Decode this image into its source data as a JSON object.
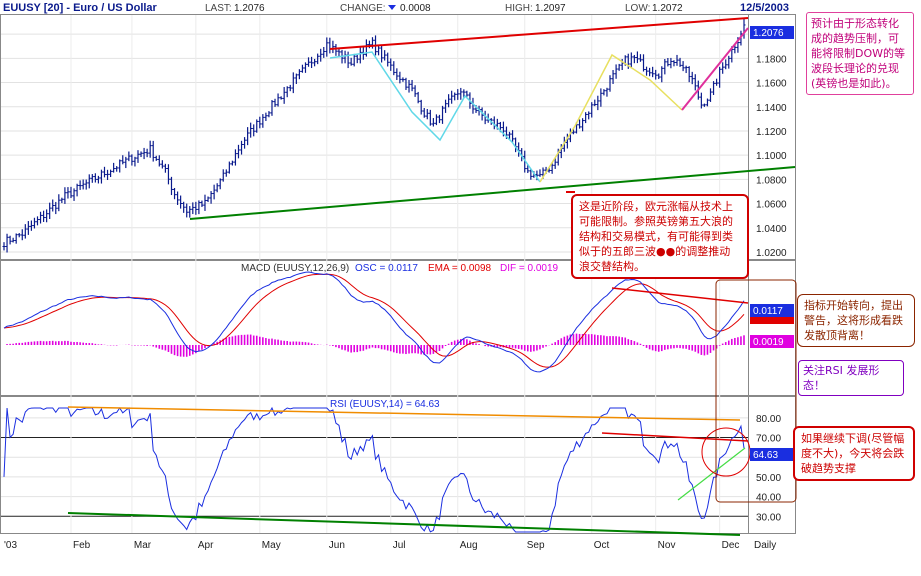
{
  "header": {
    "symbol": "EUUSY [20] - Euro / US Dollar",
    "last_label": "LAST:",
    "last": "1.2076",
    "change_label": "CHANGE:",
    "change": "0.0008",
    "high_label": "HIGH:",
    "high": "1.2097",
    "low_label": "LOW:",
    "low": "1.2072",
    "date": "12/5/2003"
  },
  "colors": {
    "price": "#0a1a8c",
    "macd_line": "#1a2ee0",
    "signal_line": "#e00000",
    "histogram": "#e000e0",
    "rsi_line": "#1a2ee0",
    "trend_red": "#e00000",
    "trend_green": "#008000",
    "trend_orange": "#f08c00",
    "wave_cyan": "#60d8e8",
    "wave_yellow": "#e8e060",
    "wave_magenta": "#e0309c",
    "bg": "#ffffff"
  },
  "chart_data": [
    {
      "type": "ohlc",
      "panel": "price",
      "ylim": [
        1.015,
        1.215
      ],
      "y_ticks": [
        "1.2000",
        "1.1800",
        "1.1600",
        "1.1400",
        "1.1200",
        "1.1000",
        "1.0800",
        "1.0600",
        "1.0400",
        "1.0200"
      ],
      "y_tick_values": [
        1.2,
        1.18,
        1.16,
        1.14,
        1.12,
        1.1,
        1.08,
        1.06,
        1.04,
        1.02
      ],
      "last_label": "1.2076",
      "x_months": [
        "'03",
        "Feb",
        "Mar",
        "Apr",
        "May",
        "Jun",
        "Jul",
        "Aug",
        "Sep",
        "Oct",
        "Nov",
        "Dec",
        "Daily"
      ],
      "x_month_index": [
        0,
        22,
        42,
        63,
        84,
        106,
        127,
        149,
        171,
        193,
        214,
        235,
        247
      ],
      "n_bars": 244,
      "anchors": [
        [
          0,
          1.028
        ],
        [
          6,
          1.035
        ],
        [
          12,
          1.048
        ],
        [
          20,
          1.066
        ],
        [
          28,
          1.078
        ],
        [
          35,
          1.088
        ],
        [
          42,
          1.098
        ],
        [
          48,
          1.105
        ],
        [
          53,
          1.086
        ],
        [
          56,
          1.068
        ],
        [
          60,
          1.054
        ],
        [
          66,
          1.06
        ],
        [
          72,
          1.082
        ],
        [
          78,
          1.11
        ],
        [
          86,
          1.135
        ],
        [
          94,
          1.158
        ],
        [
          100,
          1.175
        ],
        [
          106,
          1.192
        ],
        [
          111,
          1.182
        ],
        [
          114,
          1.176
        ],
        [
          117,
          1.185
        ],
        [
          121,
          1.192
        ],
        [
          128,
          1.17
        ],
        [
          134,
          1.154
        ],
        [
          138,
          1.135
        ],
        [
          141,
          1.125
        ],
        [
          145,
          1.14
        ],
        [
          150,
          1.154
        ],
        [
          154,
          1.14
        ],
        [
          158,
          1.13
        ],
        [
          164,
          1.122
        ],
        [
          168,
          1.106
        ],
        [
          172,
          1.086
        ],
        [
          176,
          1.082
        ],
        [
          180,
          1.092
        ],
        [
          184,
          1.11
        ],
        [
          190,
          1.13
        ],
        [
          196,
          1.15
        ],
        [
          200,
          1.165
        ],
        [
          204,
          1.178
        ],
        [
          207,
          1.18
        ],
        [
          211,
          1.172
        ],
        [
          215,
          1.168
        ],
        [
          219,
          1.18
        ],
        [
          222,
          1.176
        ],
        [
          226,
          1.162
        ],
        [
          229,
          1.142
        ],
        [
          232,
          1.15
        ],
        [
          235,
          1.168
        ],
        [
          238,
          1.182
        ],
        [
          241,
          1.196
        ],
        [
          243,
          1.2076
        ]
      ]
    },
    {
      "type": "line",
      "panel": "macd",
      "title": "MACD (EUUSY,12,26,9)",
      "osc_label": "OSC = 0.0117",
      "ema_label": "EMA = 0.0098",
      "dif_label": "DIF = 0.0019",
      "last_values": [
        "0.0117",
        "0.0098",
        "0.0019"
      ]
    },
    {
      "type": "line",
      "panel": "rsi",
      "title": "RSI (EUUSY,14) = 64.63",
      "ylim": [
        22,
        85
      ],
      "y_ticks": [
        "80.00",
        "70.00",
        "60.00",
        "50.00",
        "40.00",
        "30.00"
      ],
      "y_tick_values": [
        80,
        70,
        60,
        50,
        40,
        30
      ],
      "last_label": "64.63"
    }
  ],
  "notes": {
    "top_right": "预计由于形态转化成的趋势压制，可能将限制DOW的等波段长理论的兑现(英镑也是如此)。",
    "middle": "这是近阶段，欧元涨幅从技术上可能限制。参照英镑第五大浪的结构和交易模式，有可能得到类似于的五郎三波●●的调整推动浪交替结构。",
    "macd_side": "指标开始转向，提出警告，这将形成看跌发散顶背离！",
    "rsi_focus": "关注RSI 发展形态！",
    "rsi_side": "如果继续下调(尽管幅度不大)，今天将会跌破趋势支撑"
  }
}
